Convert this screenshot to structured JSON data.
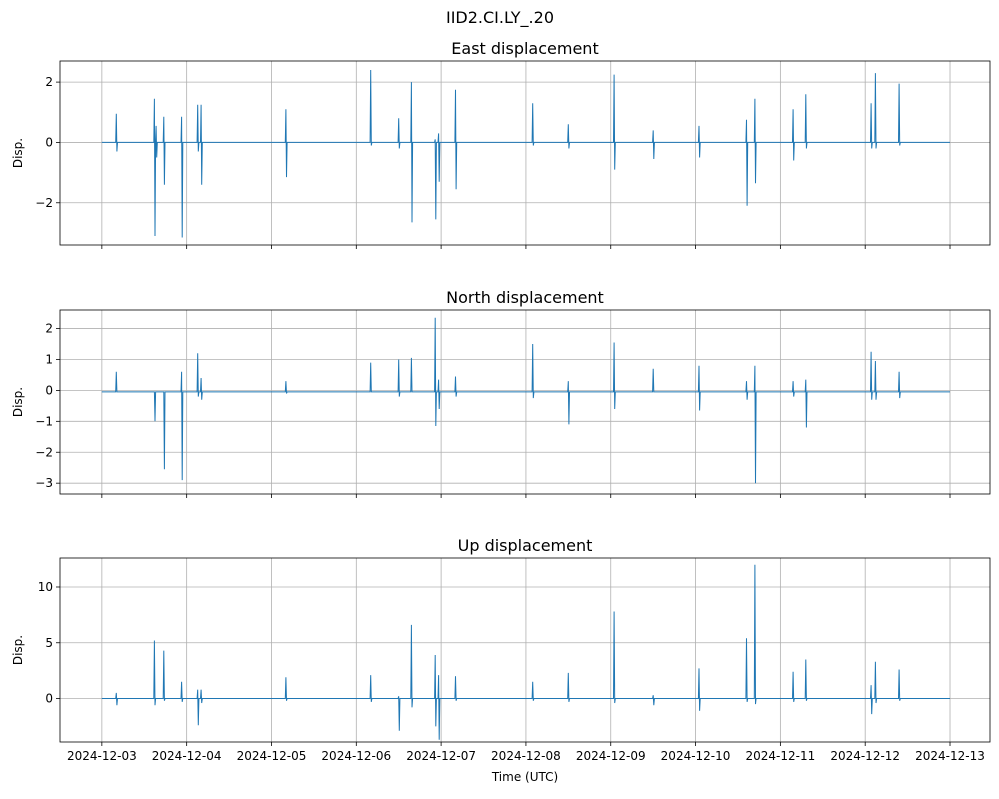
{
  "chart_data": {
    "type": "line",
    "suptitle": "IID2.CI.LY_.20",
    "xlabel": "Time (UTC)",
    "x_tick_labels": [
      "2024-12-03",
      "2024-12-04",
      "2024-12-05",
      "2024-12-06",
      "2024-12-07",
      "2024-12-08",
      "2024-12-09",
      "2024-12-10",
      "2024-12-11",
      "2024-12-12",
      "2024-12-13"
    ],
    "xlim": [
      0,
      10
    ],
    "panels": [
      {
        "title": "East displacement",
        "ylabel": "Disp.",
        "ylim": [
          -3.4,
          2.7
        ],
        "yticks": [
          -2,
          0,
          2
        ],
        "ytick_labels": [
          "−2",
          "0",
          "2"
        ],
        "x_range": [
          0,
          10
        ],
        "baseline": 0,
        "spikes": [
          [
            0.17,
            -0.3,
            0.95
          ],
          [
            0.62,
            -3.1,
            1.45
          ],
          [
            0.64,
            -0.5,
            0.55
          ],
          [
            0.73,
            -1.4,
            0.85
          ],
          [
            0.94,
            -3.15,
            0.85
          ],
          [
            1.13,
            -0.3,
            1.25
          ],
          [
            1.17,
            -1.4,
            1.25
          ],
          [
            2.17,
            -1.15,
            1.1
          ],
          [
            3.17,
            -0.1,
            2.4
          ],
          [
            3.5,
            -0.2,
            0.8
          ],
          [
            3.65,
            -2.65,
            2.0
          ],
          [
            3.93,
            -2.55,
            0.1
          ],
          [
            3.97,
            -1.3,
            0.3
          ],
          [
            4.17,
            -1.55,
            1.75
          ],
          [
            5.08,
            -0.1,
            1.3
          ],
          [
            5.5,
            -0.2,
            0.6
          ],
          [
            6.04,
            -0.9,
            2.25
          ],
          [
            6.5,
            -0.55,
            0.4
          ],
          [
            7.04,
            -0.5,
            0.55
          ],
          [
            7.6,
            -2.1,
            0.75
          ],
          [
            7.7,
            -1.35,
            1.45
          ],
          [
            8.15,
            -0.6,
            1.1
          ],
          [
            8.3,
            -0.2,
            1.6
          ],
          [
            9.07,
            -0.2,
            1.3
          ],
          [
            9.12,
            -0.2,
            2.3
          ],
          [
            9.4,
            -0.1,
            1.95
          ]
        ]
      },
      {
        "title": "North displacement",
        "ylabel": "Disp.",
        "ylim": [
          -3.35,
          2.6
        ],
        "yticks": [
          -3,
          -2,
          -1,
          0,
          1,
          2
        ],
        "ytick_labels": [
          "−3",
          "−2",
          "−1",
          "0",
          "1",
          "2"
        ],
        "x_range": [
          0,
          10
        ],
        "baseline": -0.05,
        "spikes": [
          [
            0.17,
            -0.05,
            0.6
          ],
          [
            0.62,
            -1.0,
            -0.05
          ],
          [
            0.73,
            -2.55,
            -0.05
          ],
          [
            0.94,
            -2.9,
            0.6
          ],
          [
            1.13,
            -0.2,
            1.2
          ],
          [
            1.17,
            -0.3,
            0.4
          ],
          [
            2.17,
            -0.1,
            0.3
          ],
          [
            3.17,
            -0.05,
            0.9
          ],
          [
            3.5,
            -0.2,
            1.0
          ],
          [
            3.65,
            -0.05,
            1.05
          ],
          [
            3.93,
            -1.15,
            2.35
          ],
          [
            3.97,
            -0.6,
            0.35
          ],
          [
            4.17,
            -0.2,
            0.45
          ],
          [
            5.08,
            -0.25,
            1.5
          ],
          [
            5.5,
            -1.1,
            0.3
          ],
          [
            6.04,
            -0.6,
            1.55
          ],
          [
            6.5,
            -0.05,
            0.7
          ],
          [
            7.04,
            -0.65,
            0.8
          ],
          [
            7.6,
            -0.3,
            0.3
          ],
          [
            7.7,
            -3.0,
            0.8
          ],
          [
            8.15,
            -0.2,
            0.3
          ],
          [
            8.3,
            -1.2,
            0.35
          ],
          [
            9.07,
            -0.3,
            1.25
          ],
          [
            9.12,
            -0.3,
            0.95
          ],
          [
            9.4,
            -0.25,
            0.6
          ]
        ]
      },
      {
        "title": "Up displacement",
        "ylabel": "Disp.",
        "ylim": [
          -3.9,
          12.6
        ],
        "yticks": [
          0,
          5,
          10
        ],
        "ytick_labels": [
          "0",
          "5",
          "10"
        ],
        "x_range": [
          0,
          10
        ],
        "baseline": 0,
        "spikes": [
          [
            0.17,
            -0.6,
            0.5
          ],
          [
            0.62,
            -0.6,
            5.2
          ],
          [
            0.73,
            -0.2,
            4.3
          ],
          [
            0.94,
            -0.3,
            1.5
          ],
          [
            1.13,
            -2.4,
            0.8
          ],
          [
            1.17,
            -0.4,
            0.8
          ],
          [
            2.17,
            -0.2,
            1.9
          ],
          [
            3.17,
            -0.3,
            2.1
          ],
          [
            3.5,
            -2.9,
            0.2
          ],
          [
            3.65,
            -0.8,
            6.6
          ],
          [
            3.93,
            -2.5,
            3.9
          ],
          [
            3.97,
            -3.7,
            2.1
          ],
          [
            4.17,
            -0.2,
            2.0
          ],
          [
            5.08,
            -0.2,
            1.5
          ],
          [
            5.5,
            -0.3,
            2.3
          ],
          [
            6.04,
            -0.4,
            7.8
          ],
          [
            6.5,
            -0.6,
            0.3
          ],
          [
            7.04,
            -1.1,
            2.7
          ],
          [
            7.6,
            -0.3,
            5.4
          ],
          [
            7.7,
            -0.5,
            12.0
          ],
          [
            8.15,
            -0.3,
            2.4
          ],
          [
            8.3,
            -0.2,
            3.5
          ],
          [
            9.07,
            -1.4,
            1.2
          ],
          [
            9.12,
            -0.4,
            3.3
          ],
          [
            9.4,
            -0.2,
            2.6
          ]
        ]
      }
    ]
  }
}
